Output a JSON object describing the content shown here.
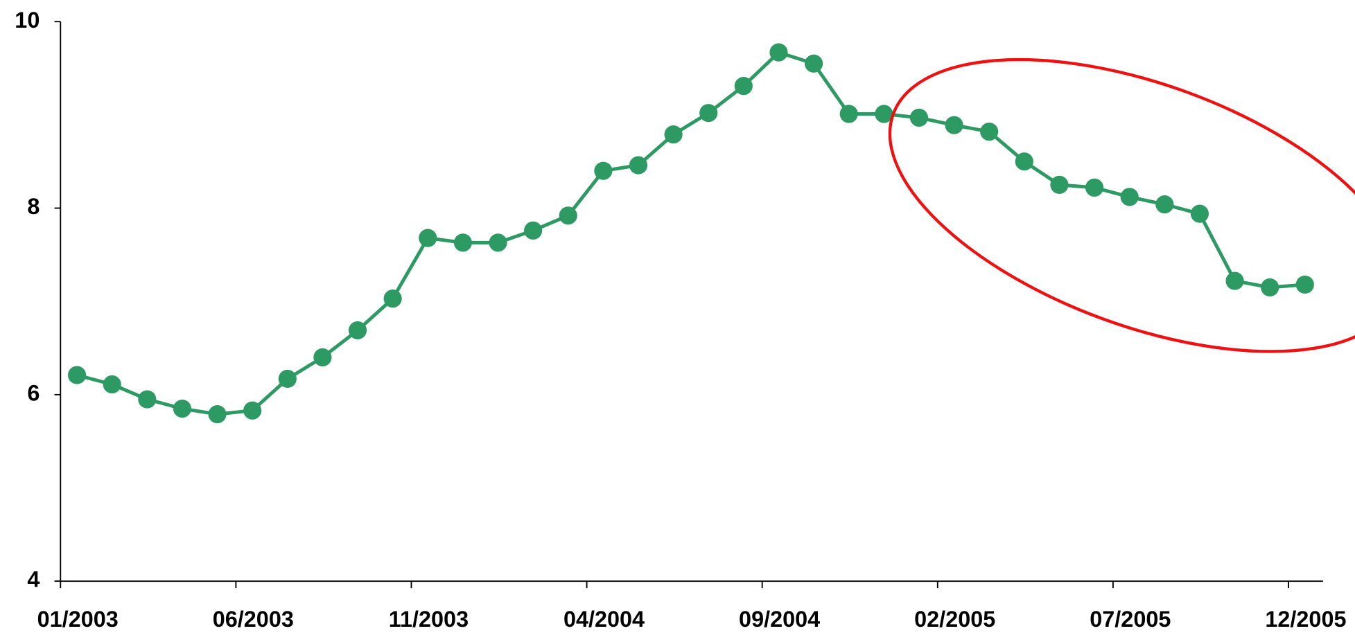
{
  "chart_data": {
    "type": "line",
    "categories": [
      "01/2003",
      null,
      null,
      null,
      null,
      "06/2003",
      null,
      null,
      null,
      null,
      "11/2003",
      null,
      null,
      null,
      null,
      "04/2004",
      null,
      null,
      null,
      null,
      "09/2004",
      null,
      null,
      null,
      null,
      "02/2005",
      null,
      null,
      null,
      null,
      "07/2005",
      null,
      null,
      null,
      null,
      "12/2005"
    ],
    "series": [
      {
        "color": "#2e9a63",
        "values": [
          6.21,
          6.11,
          5.95,
          5.85,
          5.79,
          5.83,
          6.17,
          6.4,
          6.69,
          7.03,
          7.68,
          7.63,
          7.63,
          7.76,
          7.92,
          8.4,
          8.46,
          8.79,
          9.02,
          9.31,
          9.67,
          9.55,
          9.01,
          9.01,
          8.97,
          8.89,
          8.82,
          8.5,
          8.25,
          8.22,
          8.12,
          8.04,
          7.94,
          7.22,
          7.15,
          7.18
        ]
      }
    ],
    "ylim": [
      4,
      10
    ],
    "yticks": [
      4,
      6,
      8,
      10
    ],
    "grid": false
  }
}
